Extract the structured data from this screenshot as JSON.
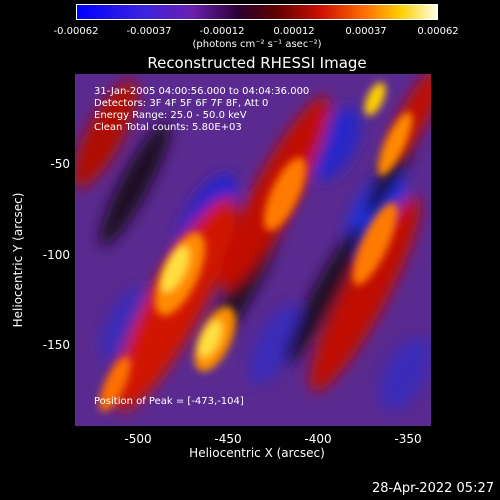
{
  "colorbar": {
    "ticks": [
      "-0.00062",
      "-0.00037",
      "-0.00012",
      "0.00012",
      "0.00037",
      "0.00062"
    ],
    "unit": "(photons cm⁻² s⁻¹ asec⁻²)"
  },
  "title": "Reconstructed RHESSI Image",
  "annotations": {
    "time": "31-Jan-2005 04:00:56.000 to 04:04:36.000",
    "detectors": "Detectors: 3F 4F 5F 6F 7F 8F, Att 0",
    "energy": "Energy Range: 25.0 - 50.0 keV",
    "clean": "Clean     Total counts: 5.80E+03",
    "peak": "Position of Peak = [-473,-104]"
  },
  "axes": {
    "xlabel": "Heliocentric X (arcsec)",
    "ylabel": "Heliocentric Y (arcsec)",
    "xticks": [
      "-500",
      "-450",
      "-400",
      "-350"
    ],
    "yticks": [
      "-50",
      "-100",
      "-150"
    ]
  },
  "footer": {
    "date": "28-Apr-2022 05:27"
  }
}
